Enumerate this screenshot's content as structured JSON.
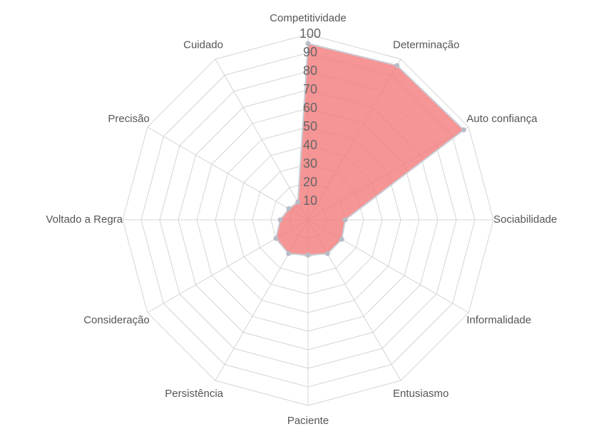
{
  "chart_data": {
    "type": "radar",
    "categories": [
      "Competitividade",
      "Determinação",
      "Auto confiança",
      "Sociabilidade",
      "Informalidade",
      "Entusiasmo",
      "Paciente",
      "Persistência",
      "Consideração",
      "Voltado a Regra",
      "Precisão",
      "Cuidado"
    ],
    "values": [
      95,
      96,
      97,
      20,
      21,
      21,
      19,
      21,
      20,
      15,
      12,
      11
    ],
    "color": "#f47a7a",
    "rlim": [
      0,
      100
    ],
    "rticks": [
      10,
      20,
      30,
      40,
      50,
      60,
      70,
      80,
      90,
      100
    ],
    "grid": true
  }
}
